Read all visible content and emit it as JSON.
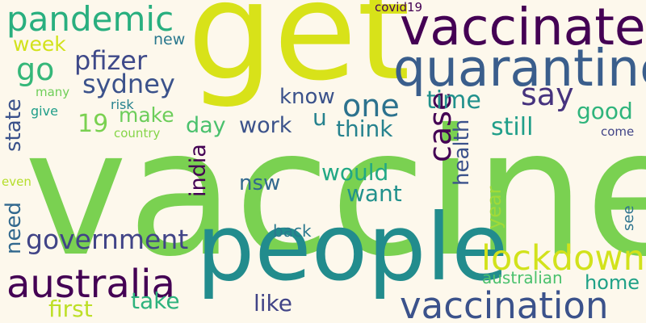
{
  "words": [
    {
      "text": "vaccine",
      "color": "#7ad151"
    },
    {
      "text": "get",
      "color": "#d8e219"
    },
    {
      "text": "people",
      "color": "#228c8d"
    },
    {
      "text": "vaccinate",
      "color": "#440154"
    },
    {
      "text": "quarantine",
      "color": "#3a5e8c"
    },
    {
      "text": "vaccination",
      "color": "#3b528b"
    },
    {
      "text": "lockdown",
      "color": "#d2e21b"
    },
    {
      "text": "australia",
      "color": "#440154"
    },
    {
      "text": "pandemic",
      "color": "#29af7f"
    },
    {
      "text": "government",
      "color": "#414487"
    },
    {
      "text": "pfizer",
      "color": "#3e4989"
    },
    {
      "text": "sydney",
      "color": "#3b528b"
    },
    {
      "text": "one",
      "color": "#2c728e"
    },
    {
      "text": "say",
      "color": "#46337e"
    },
    {
      "text": "case",
      "color": "#440154"
    },
    {
      "text": "go",
      "color": "#35b779"
    },
    {
      "text": "week",
      "color": "#d2e21b"
    },
    {
      "text": "time",
      "color": "#21918c"
    },
    {
      "text": "good",
      "color": "#2fb47c"
    },
    {
      "text": "still",
      "color": "#1f9e89"
    },
    {
      "text": "know",
      "color": "#3b528b"
    },
    {
      "text": "make",
      "color": "#6ccd5a"
    },
    {
      "text": "19",
      "color": "#7ad151"
    },
    {
      "text": "day",
      "color": "#4ac16d"
    },
    {
      "text": "work",
      "color": "#3b528b"
    },
    {
      "text": "u",
      "color": "#26828e"
    },
    {
      "text": "think",
      "color": "#26828e"
    },
    {
      "text": "would",
      "color": "#22a884"
    },
    {
      "text": "want",
      "color": "#21918c"
    },
    {
      "text": "nsw",
      "color": "#31688e"
    },
    {
      "text": "india",
      "color": "#440154"
    },
    {
      "text": "health",
      "color": "#3b528b"
    },
    {
      "text": "state",
      "color": "#3b528b"
    },
    {
      "text": "need",
      "color": "#31688e"
    },
    {
      "text": "year",
      "color": "#a0da39"
    },
    {
      "text": "take",
      "color": "#2db27d"
    },
    {
      "text": "like",
      "color": "#414487"
    },
    {
      "text": "first",
      "color": "#bddf26"
    },
    {
      "text": "home",
      "color": "#1fa187"
    },
    {
      "text": "australian",
      "color": "#4ac16d"
    },
    {
      "text": "back",
      "color": "#2a788e"
    },
    {
      "text": "new",
      "color": "#2a788e"
    },
    {
      "text": "covid19",
      "color": "#440154"
    },
    {
      "text": "many",
      "color": "#6ece58"
    },
    {
      "text": "give",
      "color": "#1f9e89"
    },
    {
      "text": "risk",
      "color": "#26828e"
    },
    {
      "text": "country",
      "color": "#86d549"
    },
    {
      "text": "come",
      "color": "#414487"
    },
    {
      "text": "even",
      "color": "#b5de2b"
    },
    {
      "text": "see",
      "color": "#2c728e"
    }
  ]
}
